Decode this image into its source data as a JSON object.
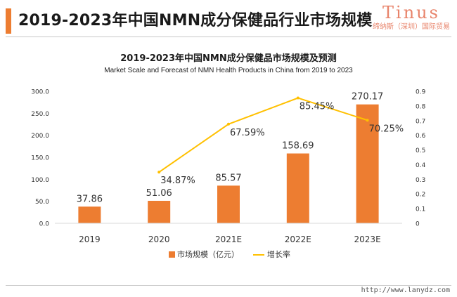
{
  "header": {
    "title": "2019-2023年中国NMN成分保健品行业市场规模"
  },
  "brand": {
    "name": "Tinus",
    "subtitle": "缔纳斯（深圳）国际贸易"
  },
  "footer": {
    "url": "http://www.lanydz.com"
  },
  "colors": {
    "accent": "#ed7d31",
    "bar": "#ed7d31",
    "line": "#ffc000",
    "brand": "#e8836a"
  },
  "chart_data": {
    "type": "bar",
    "title": "2019-2023年中国NMN成分保健品市场规模及预测",
    "subtitle": "Market Scale and Forecast of NMN Health Products in China from 2019 to 2023",
    "categories": [
      "2019",
      "2020",
      "2021E",
      "2022E",
      "2023E"
    ],
    "series": [
      {
        "name": "市场规模（亿元）",
        "type": "bar",
        "axis": "left",
        "values": [
          37.86,
          51.06,
          85.57,
          158.69,
          270.17
        ],
        "labels": [
          "37.86",
          "51.06",
          "85.57",
          "158.69",
          "270.17"
        ]
      },
      {
        "name": "增长率",
        "type": "line",
        "axis": "right",
        "values": [
          null,
          0.3487,
          0.6759,
          0.8545,
          0.7025
        ],
        "labels": [
          "",
          "34.87%",
          "67.59%",
          "85.45%",
          "70.25%"
        ]
      }
    ],
    "y_left": {
      "min": 0,
      "max": 300,
      "ticks": [
        0,
        50,
        100,
        150,
        200,
        250,
        300
      ],
      "tick_labels": [
        "0.0",
        "50.0",
        "100.0",
        "150.0",
        "200.0",
        "250.0",
        "300.0"
      ]
    },
    "y_right": {
      "min": 0,
      "max": 0.9,
      "ticks": [
        0,
        0.1,
        0.2,
        0.3,
        0.4,
        0.5,
        0.6,
        0.7,
        0.8,
        0.9
      ],
      "tick_labels": [
        "0",
        "0.1",
        "0.2",
        "0.3",
        "0.4",
        "0.5",
        "0.6",
        "0.7",
        "0.8",
        "0.9"
      ]
    },
    "grid": false,
    "legend": {
      "position": "bottom"
    }
  }
}
